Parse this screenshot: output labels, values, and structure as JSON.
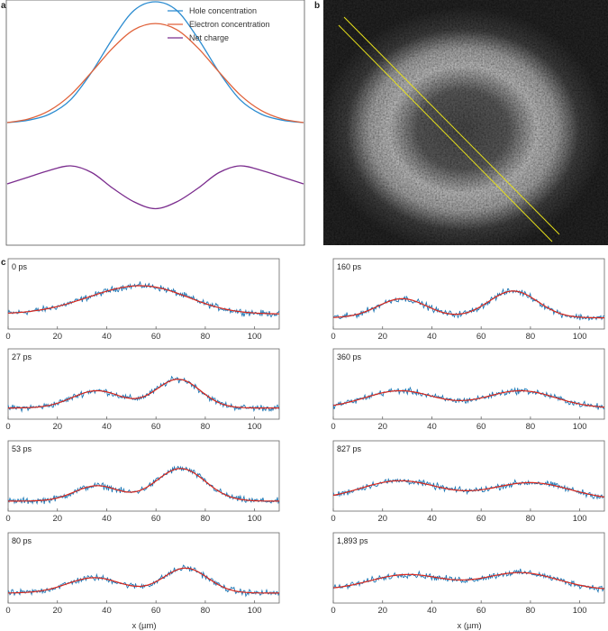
{
  "panel_labels": {
    "a": "a",
    "b": "b",
    "c": "c"
  },
  "colors": {
    "hole": "#2a8bd0",
    "electron": "#e0623a",
    "net": "#7b2d8e",
    "noisy": "#1f77b4",
    "fit": "#d9261c",
    "guide": "#e8e21a"
  },
  "chart_data": [
    {
      "type": "line",
      "panel": "a",
      "grid": false,
      "legend": "top-right",
      "series": [
        {
          "name": "Hole concentration",
          "values": [
            0,
            0.02,
            0.07,
            0.19,
            0.42,
            0.7,
            0.93,
            1.0,
            0.93,
            0.7,
            0.42,
            0.19,
            0.07,
            0.02,
            0
          ]
        },
        {
          "name": "Electron concentration",
          "values": [
            0,
            0.03,
            0.1,
            0.23,
            0.42,
            0.62,
            0.77,
            0.82,
            0.77,
            0.62,
            0.42,
            0.23,
            0.1,
            0.03,
            0
          ]
        },
        {
          "name": "Net charge",
          "values": [
            0,
            0.03,
            0.06,
            0.08,
            0.05,
            -0.02,
            -0.08,
            -0.11,
            -0.08,
            -0.02,
            0.05,
            0.08,
            0.06,
            0.03,
            0
          ]
        }
      ]
    },
    {
      "type": "line",
      "panel": "c",
      "xlabel": "x (µm)",
      "xlim": [
        0,
        110
      ],
      "xticks": [
        0,
        20,
        40,
        60,
        80,
        100
      ],
      "xticklabels": [
        "0",
        "20",
        "40",
        "60",
        "80",
        "100"
      ],
      "grid": false,
      "subplots": [
        {
          "label": "0 ps",
          "peaks": [
            [
              44,
              0.45,
              18
            ],
            [
              62,
              0.4,
              16
            ]
          ],
          "base": 0.25
        },
        {
          "label": "27 ps",
          "peaks": [
            [
              36,
              0.45,
              10
            ],
            [
              69,
              0.75,
              9
            ]
          ],
          "base": 0.15
        },
        {
          "label": "53 ps",
          "peaks": [
            [
              36,
              0.4,
              9
            ],
            [
              70,
              0.85,
              10
            ]
          ],
          "base": 0.12
        },
        {
          "label": "80 ps",
          "peaks": [
            [
              35,
              0.4,
              11
            ],
            [
              72,
              0.65,
              9
            ]
          ],
          "base": 0.12
        },
        {
          "label": "160 ps",
          "peaks": [
            [
              28,
              0.5,
              10
            ],
            [
              73,
              0.7,
              10
            ]
          ],
          "base": 0.15
        },
        {
          "label": "360 ps",
          "peaks": [
            [
              27,
              0.45,
              14
            ],
            [
              76,
              0.45,
              14
            ]
          ],
          "base": 0.15
        },
        {
          "label": "827 ps",
          "peaks": [
            [
              27,
              0.5,
              16
            ],
            [
              80,
              0.45,
              16
            ]
          ],
          "base": 0.15
        },
        {
          "label": "1,893 ps",
          "peaks": [
            [
              30,
              0.4,
              15
            ],
            [
              76,
              0.45,
              15
            ]
          ],
          "base": 0.2
        }
      ]
    }
  ]
}
